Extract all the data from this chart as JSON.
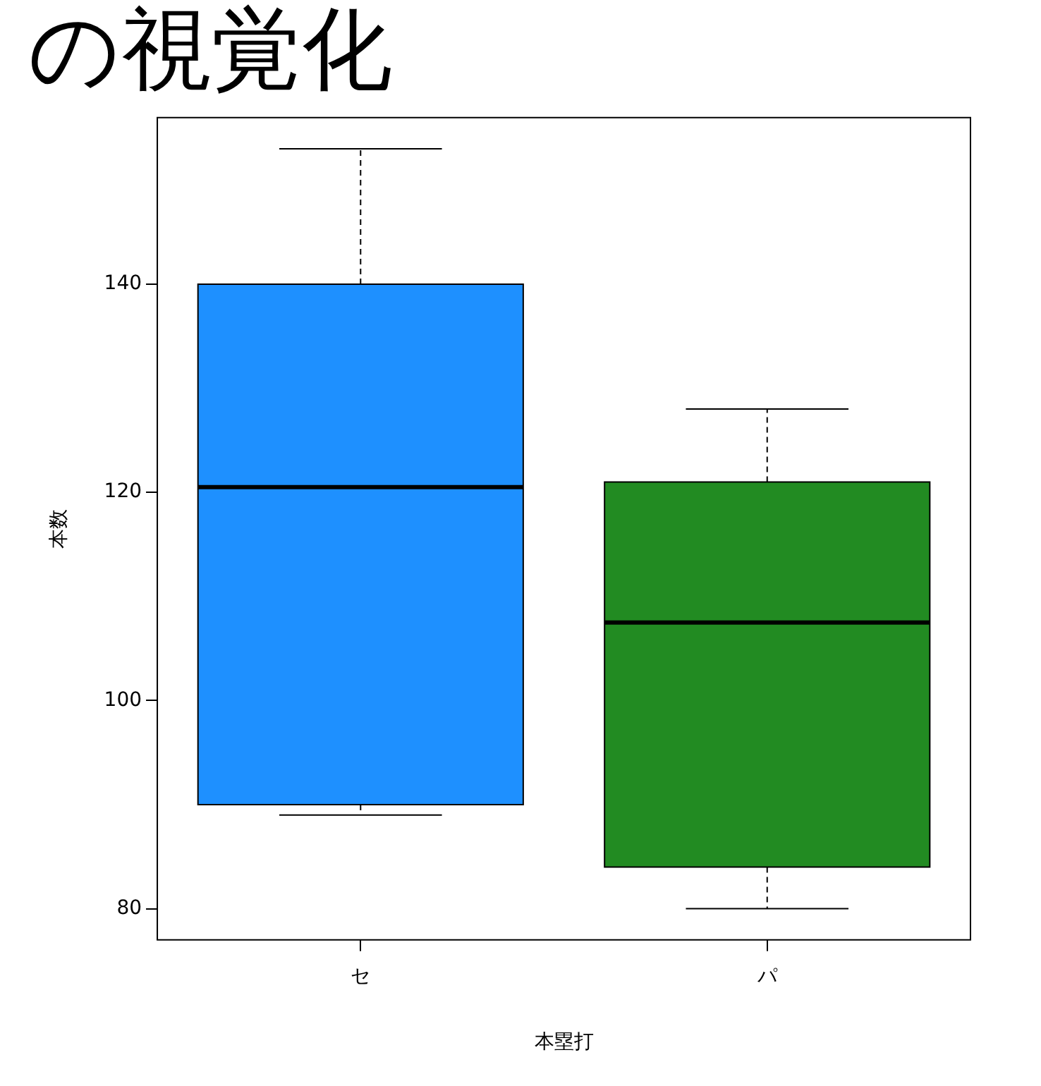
{
  "chart_data": {
    "type": "box",
    "title": "の視覚化",
    "xlabel": "本塁打",
    "ylabel": "本数",
    "categories": [
      "セ",
      "パ"
    ],
    "colors": [
      "#1e90ff",
      "#228b22"
    ],
    "boxes": [
      {
        "low": 89,
        "q1": 90,
        "median": 120.5,
        "q3": 140,
        "high": 153
      },
      {
        "low": 80,
        "q1": 84,
        "median": 107.5,
        "q3": 121,
        "high": 128
      }
    ],
    "ylim": [
      77,
      156
    ],
    "yticks": [
      80,
      100,
      120,
      140
    ],
    "grid": false,
    "legend": false
  }
}
